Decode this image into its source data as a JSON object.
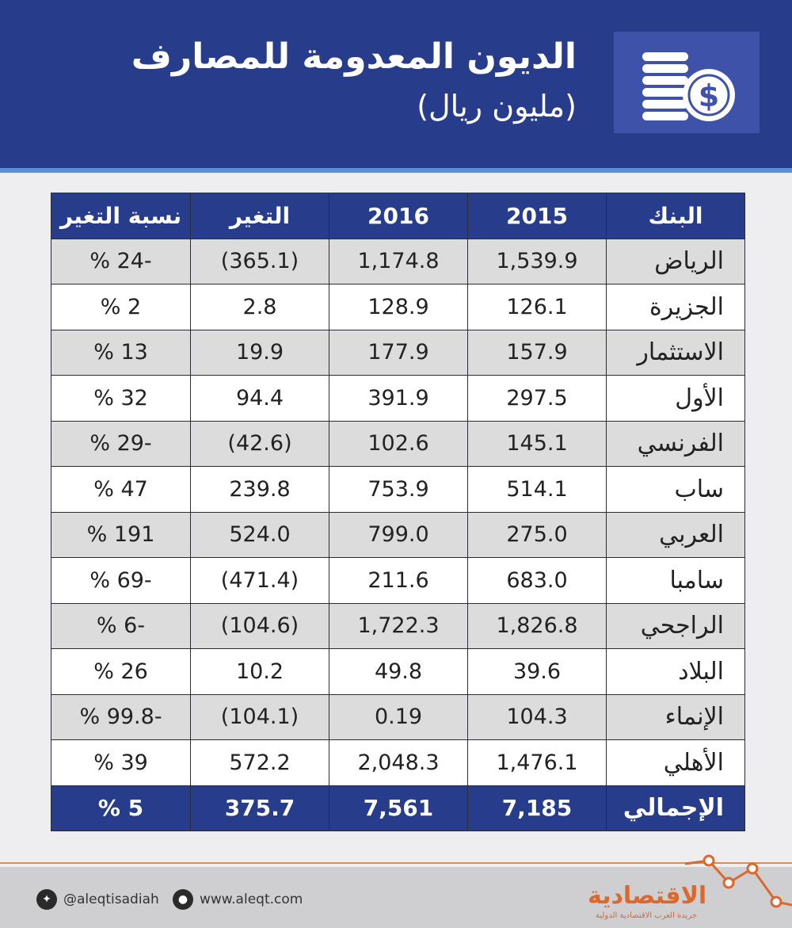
{
  "header": {
    "title": "الديون المعدومة للمصارف",
    "subtitle": "(مليون ريال)",
    "icon": "coins-dollar-icon"
  },
  "colors": {
    "header_bg": "#283c8c",
    "accent_line": "#5b8fd6",
    "row_shade": "#dcdcdc",
    "logo": "#d9692e"
  },
  "chart_data": {
    "type": "table",
    "columns": [
      "البنك",
      "2015",
      "2016",
      "التغير",
      "نسبة التغير"
    ],
    "rows": [
      {
        "bank": "الرياض",
        "y2015": "1,539.9",
        "y2016": "1,174.8",
        "change": "(365.1)",
        "pct": "-24 %"
      },
      {
        "bank": "الجزيرة",
        "y2015": "126.1",
        "y2016": "128.9",
        "change": "2.8",
        "pct": "2 %"
      },
      {
        "bank": "الاستثمار",
        "y2015": "157.9",
        "y2016": "177.9",
        "change": "19.9",
        "pct": "13 %"
      },
      {
        "bank": "الأول",
        "y2015": "297.5",
        "y2016": "391.9",
        "change": "94.4",
        "pct": "32 %"
      },
      {
        "bank": "الفرنسي",
        "y2015": "145.1",
        "y2016": "102.6",
        "change": "(42.6)",
        "pct": "-29 %"
      },
      {
        "bank": "ساب",
        "y2015": "514.1",
        "y2016": "753.9",
        "change": "239.8",
        "pct": "47 %"
      },
      {
        "bank": "العربي",
        "y2015": "275.0",
        "y2016": "799.0",
        "change": "524.0",
        "pct": "191 %"
      },
      {
        "bank": "سامبا",
        "y2015": "683.0",
        "y2016": "211.6",
        "change": "(471.4)",
        "pct": "-69 %"
      },
      {
        "bank": "الراجحي",
        "y2015": "1,826.8",
        "y2016": "1,722.3",
        "change": "(104.6)",
        "pct": "-6 %"
      },
      {
        "bank": "البلاد",
        "y2015": "39.6",
        "y2016": "49.8",
        "change": "10.2",
        "pct": "26 %"
      },
      {
        "bank": "الإنماء",
        "y2015": "104.3",
        "y2016": "0.19",
        "change": "(104.1)",
        "pct": "-99.8 %"
      },
      {
        "bank": "الأهلي",
        "y2015": "1,476.1",
        "y2016": "2,048.3",
        "change": "572.2",
        "pct": "39 %"
      }
    ],
    "total": {
      "bank": "الإجمالي",
      "y2015": "7,185",
      "y2016": "7,561",
      "change": "375.7",
      "pct": "5 %"
    }
  },
  "footer": {
    "twitter": "@aleqtisadiah",
    "twitter_icon": "twitter-icon",
    "website": "www.aleqt.com",
    "website_icon": "globe-icon",
    "logo_name": "الاقتصادية",
    "logo_tagline": "جريدة العرب الاقتصادية الدولية",
    "logo_icon": "trend-line-icon"
  }
}
